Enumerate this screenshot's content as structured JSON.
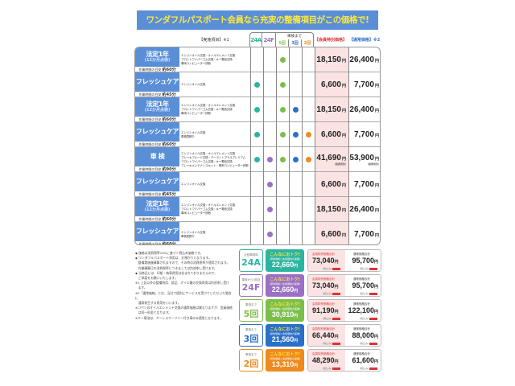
{
  "title": "ワンダフルパスポート会員なら充実の整備項目がこの価格で!",
  "headers": {
    "items": "【実施項目】※1",
    "c24a": "24A",
    "c24f": "24F",
    "shaken_until": "車検まで",
    "c5": "5回",
    "c3": "3回",
    "c2": "2回",
    "member": "【会員特別価格】",
    "normal": "【通常価格】※2"
  },
  "colors": {
    "c24a": "#2bb5a0",
    "c24f": "#9b6fc6",
    "c5": "#7bbf4a",
    "c3": "#2a6fc8",
    "c2": "#f08a1c",
    "label_bg": "#5a8fd8",
    "title_text": "#ffe93a"
  },
  "time_label": "作業時間の目安",
  "yen": "円",
  "rows": [
    {
      "name": "法定1年",
      "sub": "(12か月点検)",
      "time": "約60分",
      "services": [
        "エンジンオイル交換・オイルエレメント交換",
        "フロントワイパーゴム交換・キー電池交換",
        "車両コンピューター診断"
      ],
      "dots": [
        0,
        0,
        1,
        0,
        0
      ],
      "member": "18,150",
      "normal": "26,400"
    },
    {
      "name": "フレッシュケア",
      "sub": "",
      "time": "約45分",
      "services": [
        "エンジンオイル交換"
      ],
      "dots": [
        1,
        0,
        1,
        0,
        0
      ],
      "member": "6,600",
      "normal": "7,700"
    },
    {
      "name": "法定1年",
      "sub": "(12か月点検)",
      "time": "約60分",
      "services": [
        "エンジンオイル交換・オイルエレメント交換",
        "フロントワイパーゴム交換・キー電池交換",
        "車両コンピューター診断"
      ],
      "dots": [
        1,
        0,
        1,
        1,
        0
      ],
      "member": "18,150",
      "normal": "26,400"
    },
    {
      "name": "フレッシュケア",
      "sub": "",
      "time": "約60分",
      "services": [
        "エンジンオイル交換",
        "車検見積り"
      ],
      "dots": [
        1,
        0,
        1,
        1,
        1
      ],
      "member": "6,600",
      "normal": "7,700"
    },
    {
      "name": "車 検",
      "sub": "",
      "time": "約90分",
      "services": [
        "エンジンオイル交換・オイルエレメント交換",
        "ブレーキフルード交換・クーラントブラスプレミアム",
        "フロントワイパーゴム交換・キー電池交換",
        "ブレーキメンテナンスキット・車両コンピューター診断"
      ],
      "dots": [
        1,
        1,
        1,
        1,
        1
      ],
      "member": "41,690",
      "normal": "53,900",
      "note": "(諸費用別)"
    },
    {
      "name": "フレッシュケア",
      "sub": "",
      "time": "約45分",
      "services": [
        "エンジンオイル交換"
      ],
      "dots": [
        0,
        1,
        0,
        0,
        0
      ],
      "member": "6,600",
      "normal": "7,700"
    },
    {
      "name": "法定1年",
      "sub": "(12か月点検)",
      "time": "約60分",
      "services": [
        "エンジンオイル交換・オイルエレメント交換",
        "フロントワイパーゴム交換・キー電池交換",
        "車両コンピューター診断"
      ],
      "dots": [
        0,
        1,
        0,
        0,
        0
      ],
      "member": "18,150",
      "normal": "26,400"
    },
    {
      "name": "フレッシュケア",
      "sub": "",
      "time": "約60分",
      "services": [
        "エンジンオイル交換",
        "車検見積り"
      ],
      "dots": [
        0,
        1,
        0,
        0,
        0
      ],
      "member": "6,600",
      "normal": "7,700"
    }
  ],
  "notes": [
    "◆ 価格は消費税率10%に基づく税込み価格です。",
    "◆ ワンダフルパスポート費用は、お預かりとなります。",
    "　整備実施後精算されますので、その時の消費税率が適用されます。",
    "　作業精算日の消費税率につきましては別途申し受けます。",
    "◆ 当商品には、印紙・納車費用は含まれておりませんので、",
    "　ご承諾をお願いいたします。",
    "※1 上記以外の整備費用、部品、オイル類の交換費用は別途申し受け",
    "　ます。",
    "※2「通常価格」とは、当社で個別にサービスを受けていただいた場合に",
    "　通常発生する費用をいいます。",
    "※コペンのオイルエレメント交換の通常価格は異なりますが、会員価格",
    "　は同一料金となります。",
    "※キー電池は、キーレスキーフリー付き車のみ適用となります。"
  ],
  "summary_labels": {
    "save": "こんなにおトク!",
    "diff": "(通常価格と会員価格の差額)",
    "member_total": "会員特別価格合計",
    "normal_total": "通常価格合計",
    "tax": "(税込み)"
  },
  "summary": [
    {
      "caption": "次回車検時",
      "plan": "24A",
      "color": "#2bb5a0",
      "save": "22,660",
      "member": "73,040",
      "normal": "95,700"
    },
    {
      "caption": "車検から3回目",
      "plan": "24F",
      "color": "#9b6fc6",
      "save": "22,660",
      "member": "73,040",
      "normal": "95,700"
    },
    {
      "caption": "車検まで",
      "plan": "5回",
      "color": "#7bbf4a",
      "save": "30,910",
      "member": "91,190",
      "normal": "122,100"
    },
    {
      "caption": "車検まで",
      "plan": "3回",
      "color": "#2a6fc8",
      "save": "21,560",
      "member": "66,440",
      "normal": "88,000"
    },
    {
      "caption": "車検まで",
      "plan": "2回",
      "color": "#f08a1c",
      "save": "13,310",
      "member": "48,290",
      "normal": "61,600"
    }
  ]
}
